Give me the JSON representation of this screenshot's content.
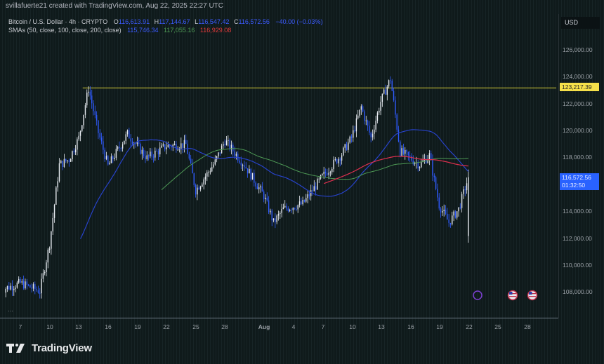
{
  "header": {
    "credit": "svillafuerte21 created with TradingView.com, Aug 22, 2025 22:27 UTC"
  },
  "legend": {
    "symbol": "Bitcoin / U.S. Dollar · 4h · CRYPTO",
    "open_label": "O",
    "open": "116,613.91",
    "high_label": "H",
    "high": "117,144.67",
    "low_label": "L",
    "low": "116,547.42",
    "close_label": "C",
    "close": "116,572.56",
    "change": "−40.00 (−0.03%)",
    "sma_label": "SMAs (50, close, 100, close, 200, close)",
    "sma50": "115,746.34",
    "sma100": "117,055.16",
    "sma200": "116,929.08"
  },
  "price_axis": {
    "currency": "USD",
    "ticks": [
      "126,000.00",
      "124,000.00",
      "122,000.00",
      "120,000.00",
      "118,000.00",
      "114,000.00",
      "112,000.00",
      "110,000.00",
      "108,000.00"
    ],
    "horizontal_line_label": "123,217.39",
    "last_price_label": "116,572.56",
    "countdown": "01:32:50"
  },
  "time_axis": {
    "labels": [
      "7",
      "10",
      "13",
      "16",
      "19",
      "22",
      "25",
      "28",
      "Aug",
      "4",
      "7",
      "10",
      "13",
      "16",
      "19",
      "22",
      "25",
      "28"
    ]
  },
  "branding": {
    "name": "TradingView"
  },
  "colors": {
    "up_candle": "#e8ecf2",
    "down_candle": "#2f5bff",
    "sma50": "#2742c9",
    "sma100": "#4e9a55",
    "sma200": "#e0304f",
    "hline": "#d8cf3a",
    "last_price_tag": "#2962ff"
  },
  "chart_data": {
    "type": "candlestick",
    "title": "Bitcoin / U.S. Dollar · 4h · CRYPTO",
    "xlabel": "",
    "ylabel": "USD",
    "ylim": [
      106500,
      127300
    ],
    "x_range": [
      "Jul 5, 2025",
      "Aug 30, 2025"
    ],
    "x_ticks": [
      "Jul 7",
      "Jul 10",
      "Jul 13",
      "Jul 16",
      "Jul 19",
      "Jul 22",
      "Jul 25",
      "Jul 28",
      "Aug 1",
      "Aug 4",
      "Aug 7",
      "Aug 10",
      "Aug 13",
      "Aug 16",
      "Aug 19",
      "Aug 22",
      "Aug 25",
      "Aug 28"
    ],
    "grid": false,
    "last_ohlc": {
      "open": 116613.91,
      "high": 117144.67,
      "low": 116547.42,
      "close": 116572.56,
      "change": -40.0,
      "change_pct": -0.03
    },
    "horizontal_line": 123217.39,
    "approx_close_path": {
      "dates": [
        "Jul 5",
        "Jul 7",
        "Jul 9",
        "Jul 10",
        "Jul 11",
        "Jul 12",
        "Jul 13",
        "Jul 14",
        "Jul 15",
        "Jul 16",
        "Jul 18",
        "Jul 20",
        "Jul 22",
        "Jul 24",
        "Jul 25",
        "Jul 27",
        "Jul 28",
        "Jul 30",
        "Aug 1",
        "Aug 2",
        "Aug 3",
        "Aug 5",
        "Aug 7",
        "Aug 9",
        "Aug 10",
        "Aug 11",
        "Aug 12",
        "Aug 13",
        "Aug 14",
        "Aug 15",
        "Aug 17",
        "Aug 18",
        "Aug 19",
        "Aug 20",
        "Aug 21",
        "Aug 22"
      ],
      "close": [
        108200,
        108700,
        108100,
        111600,
        117500,
        117900,
        119500,
        123200,
        119900,
        117400,
        119800,
        118000,
        118900,
        119000,
        115600,
        117700,
        119300,
        117500,
        115200,
        113200,
        114200,
        114600,
        116600,
        118300,
        119500,
        121800,
        119500,
        122200,
        123900,
        118500,
        117500,
        118200,
        114500,
        113200,
        114200,
        116570
      ]
    },
    "series": [
      {
        "name": "SMA 50",
        "last": 115746.34,
        "color": "#2742c9"
      },
      {
        "name": "SMA 100",
        "last": 117055.16,
        "color": "#4e9a55"
      },
      {
        "name": "SMA 200",
        "last": 116929.08,
        "color": "#e0304f"
      }
    ],
    "annotations": [
      "Horizontal resistance line at 123,217.39",
      "Event markers: crypto event icon and two US economic events near Aug 22–27"
    ]
  }
}
